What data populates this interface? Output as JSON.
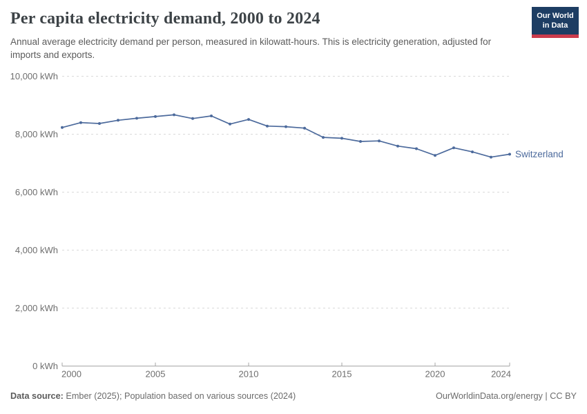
{
  "header": {
    "title": "Per capita electricity demand, 2000 to 2024",
    "subtitle": "Annual average electricity demand per person, measured in kilowatt-hours. This is electricity generation, adjusted for imports and exports.",
    "logo": {
      "line1": "Our World",
      "line2": "in Data",
      "bg_color": "#1d3d63",
      "stripe_color": "#cb3b4c"
    }
  },
  "chart_data": {
    "type": "line",
    "title": "Per capita electricity demand, 2000 to 2024",
    "unit": "kWh",
    "x": [
      2000,
      2001,
      2002,
      2003,
      2004,
      2005,
      2006,
      2007,
      2008,
      2009,
      2010,
      2011,
      2012,
      2013,
      2014,
      2015,
      2016,
      2017,
      2018,
      2019,
      2020,
      2021,
      2022,
      2023,
      2024
    ],
    "series": [
      {
        "name": "Switzerland",
        "color": "#4c6a9c",
        "values": [
          8230,
          8400,
          8370,
          8480,
          8550,
          8610,
          8670,
          8540,
          8630,
          8350,
          8510,
          8280,
          8260,
          8210,
          7890,
          7860,
          7750,
          7770,
          7590,
          7500,
          7270,
          7530,
          7390,
          7210,
          7310
        ]
      }
    ],
    "ylim": [
      0,
      10000
    ],
    "yticks": [
      0,
      2000,
      4000,
      6000,
      8000,
      10000
    ],
    "ytick_labels": [
      "0 kWh",
      "2,000 kWh",
      "4,000 kWh",
      "6,000 kWh",
      "8,000 kWh",
      "10,000 kWh"
    ],
    "xticks": [
      2000,
      2005,
      2010,
      2015,
      2020,
      2024
    ],
    "grid": "horizontal-dashed",
    "legend": "series-end-label",
    "colors": {
      "grid": "#d9d9d9",
      "axis": "#a5a5a5",
      "tick_text": "#6e6e6e"
    }
  },
  "footer": {
    "source_label": "Data source:",
    "source_text": " Ember (2025); Population based on various sources (2024)",
    "right_text": "OurWorldinData.org/energy | CC BY"
  }
}
